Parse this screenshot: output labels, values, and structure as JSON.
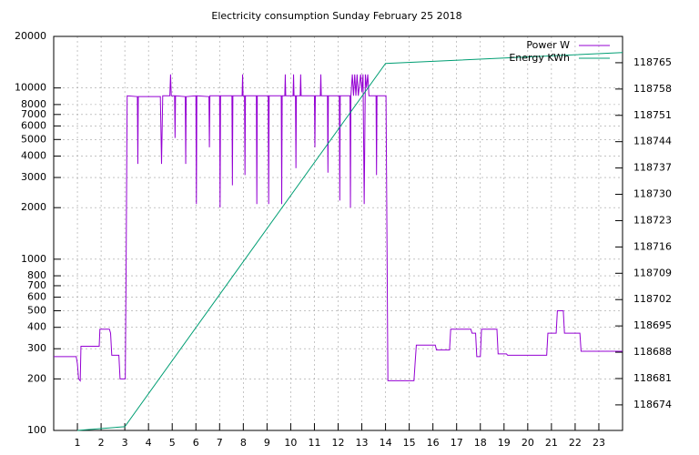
{
  "chart_data": {
    "type": "line",
    "title": "Electricity consumption Sunday February 25 2018",
    "xlim": [
      0,
      24
    ],
    "xticks": [
      1,
      2,
      3,
      4,
      5,
      6,
      7,
      8,
      9,
      10,
      11,
      12,
      13,
      14,
      15,
      16,
      17,
      18,
      19,
      20,
      21,
      22,
      23
    ],
    "ylim": [
      100,
      20000
    ],
    "yscale": "log",
    "yticks": [
      100,
      200,
      300,
      400,
      500,
      600,
      700,
      800,
      1000,
      2000,
      3000,
      4000,
      5000,
      6000,
      7000,
      8000,
      10000,
      20000
    ],
    "y2lim": [
      118667.2,
      118772
    ],
    "y2ticks": [
      118674,
      118681,
      118688,
      118695,
      118702,
      118709,
      118716,
      118723,
      118730,
      118737,
      118744,
      118751,
      118758,
      118765
    ],
    "grid": true,
    "legend": "top-right",
    "series": [
      {
        "name": "Power W",
        "color": "#9400d3",
        "x": [
          0,
          0.95,
          1.0,
          1.05,
          1.12,
          1.15,
          1.92,
          1.95,
          2.35,
          2.4,
          2.45,
          2.75,
          2.8,
          3.02,
          3.05,
          3.1,
          3.53,
          3.55,
          3.57,
          4.5,
          4.55,
          4.6,
          4.9,
          4.93,
          4.96,
          5.1,
          5.12,
          5.14,
          5.55,
          5.57,
          5.59,
          6.0,
          6.02,
          6.04,
          6.55,
          6.57,
          6.59,
          7.0,
          7.02,
          7.04,
          7.52,
          7.54,
          7.56,
          7.95,
          7.97,
          7.99,
          8.05,
          8.07,
          8.09,
          8.55,
          8.57,
          8.59,
          9.05,
          9.07,
          9.09,
          9.6,
          9.62,
          9.64,
          9.75,
          9.77,
          9.79,
          10.1,
          10.12,
          10.14,
          10.2,
          10.22,
          10.24,
          10.4,
          10.42,
          10.44,
          11.0,
          11.02,
          11.04,
          11.25,
          11.27,
          11.29,
          11.55,
          11.57,
          11.59,
          12.05,
          12.07,
          12.09,
          12.5,
          12.52,
          12.54,
          12.6,
          12.65,
          12.7,
          12.75,
          12.8,
          12.85,
          12.95,
          13.0,
          13.05,
          13.1,
          13.15,
          13.2,
          13.25,
          13.3,
          13.6,
          13.62,
          13.64,
          14.02,
          14.05,
          14.1,
          15.2,
          15.25,
          15.3,
          16.1,
          16.15,
          16.7,
          16.75,
          17.6,
          17.65,
          17.8,
          17.85,
          18.0,
          18.05,
          18.7,
          18.75,
          19.1,
          19.15,
          20.8,
          20.85,
          21.2,
          21.25,
          21.5,
          21.55,
          22.2,
          22.25,
          24
        ],
        "values": [
          270,
          270,
          245,
          200,
          195,
          310,
          310,
          390,
          390,
          370,
          275,
          275,
          200,
          200,
          700,
          9000,
          8900,
          3600,
          8900,
          8900,
          3600,
          9000,
          9000,
          12000,
          9000,
          9000,
          5100,
          9000,
          8900,
          3600,
          8900,
          9000,
          2100,
          9000,
          8900,
          4500,
          9000,
          9000,
          2000,
          9000,
          9000,
          2700,
          9000,
          9000,
          12000,
          9000,
          9000,
          3100,
          9000,
          9000,
          2100,
          9000,
          9000,
          2100,
          9000,
          9000,
          2100,
          9000,
          9000,
          12000,
          9000,
          9000,
          12000,
          9000,
          9000,
          3400,
          9000,
          9000,
          12000,
          9000,
          9000,
          4500,
          9000,
          9000,
          12000,
          9000,
          9000,
          3200,
          9000,
          9000,
          2200,
          9000,
          9000,
          2000,
          9000,
          12000,
          9000,
          12000,
          9000,
          12000,
          9000,
          12000,
          9500,
          12000,
          2100,
          12000,
          10000,
          12000,
          9000,
          9000,
          3100,
          9000,
          9000,
          2200,
          195,
          195,
          250,
          315,
          315,
          295,
          295,
          390,
          390,
          370,
          370,
          270,
          270,
          390,
          390,
          280,
          280,
          275,
          275,
          370,
          370,
          500,
          500,
          370,
          370,
          290,
          290
        ]
      },
      {
        "name": "Energy KWh",
        "color": "#009e73",
        "axis": "y2",
        "x": [
          1,
          3,
          14,
          24
        ],
        "values": [
          118667.2,
          118668.2,
          118764.8,
          118767.7
        ]
      }
    ]
  }
}
